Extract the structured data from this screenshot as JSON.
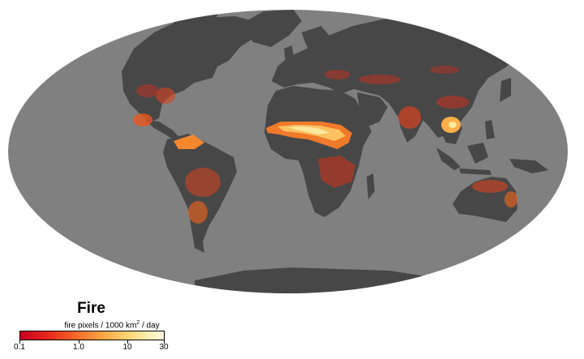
{
  "map": {
    "name": "Fire",
    "ocean_color": "#808080",
    "land_color": "#474747",
    "background": "#ffffff",
    "projection": "Mollweide"
  },
  "legend": {
    "title": "Fire",
    "unit_prefix": "fire pixels / 1000 km",
    "unit_sup": "2",
    "unit_suffix": " / day",
    "colors": [
      "#c8001e",
      "#e8281c",
      "#f46d2b",
      "#fcae48",
      "#fde289",
      "#fffbe0"
    ],
    "ticks": [
      "0.1",
      "1.0",
      "10",
      "30"
    ]
  }
}
